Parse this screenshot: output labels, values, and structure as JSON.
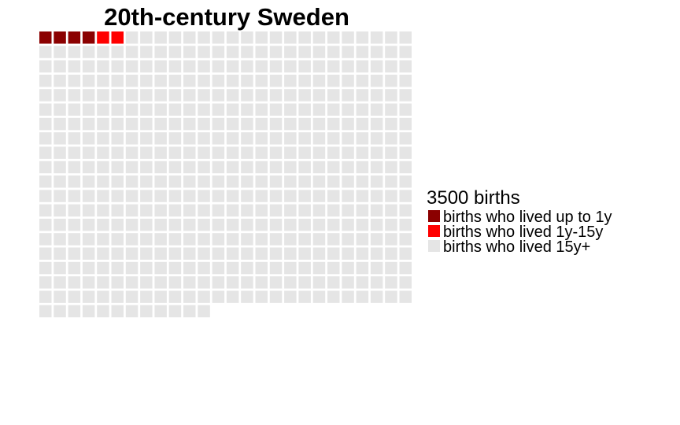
{
  "chart_data": {
    "type": "waffle",
    "title": "20th-century Sweden",
    "legend_title": "3500 births",
    "legend_position": "right",
    "grid_rows": 26,
    "cells_per_row": 26,
    "series": [
      {
        "name": "births who lived up to 1y",
        "cells": 4,
        "color": "#8b0000"
      },
      {
        "name": "births who lived 1y-15y",
        "cells": 2,
        "color": "#ff0000"
      },
      {
        "name": "births who lived 15y+",
        "cells": 500,
        "color": "#e5e5e5"
      }
    ]
  }
}
